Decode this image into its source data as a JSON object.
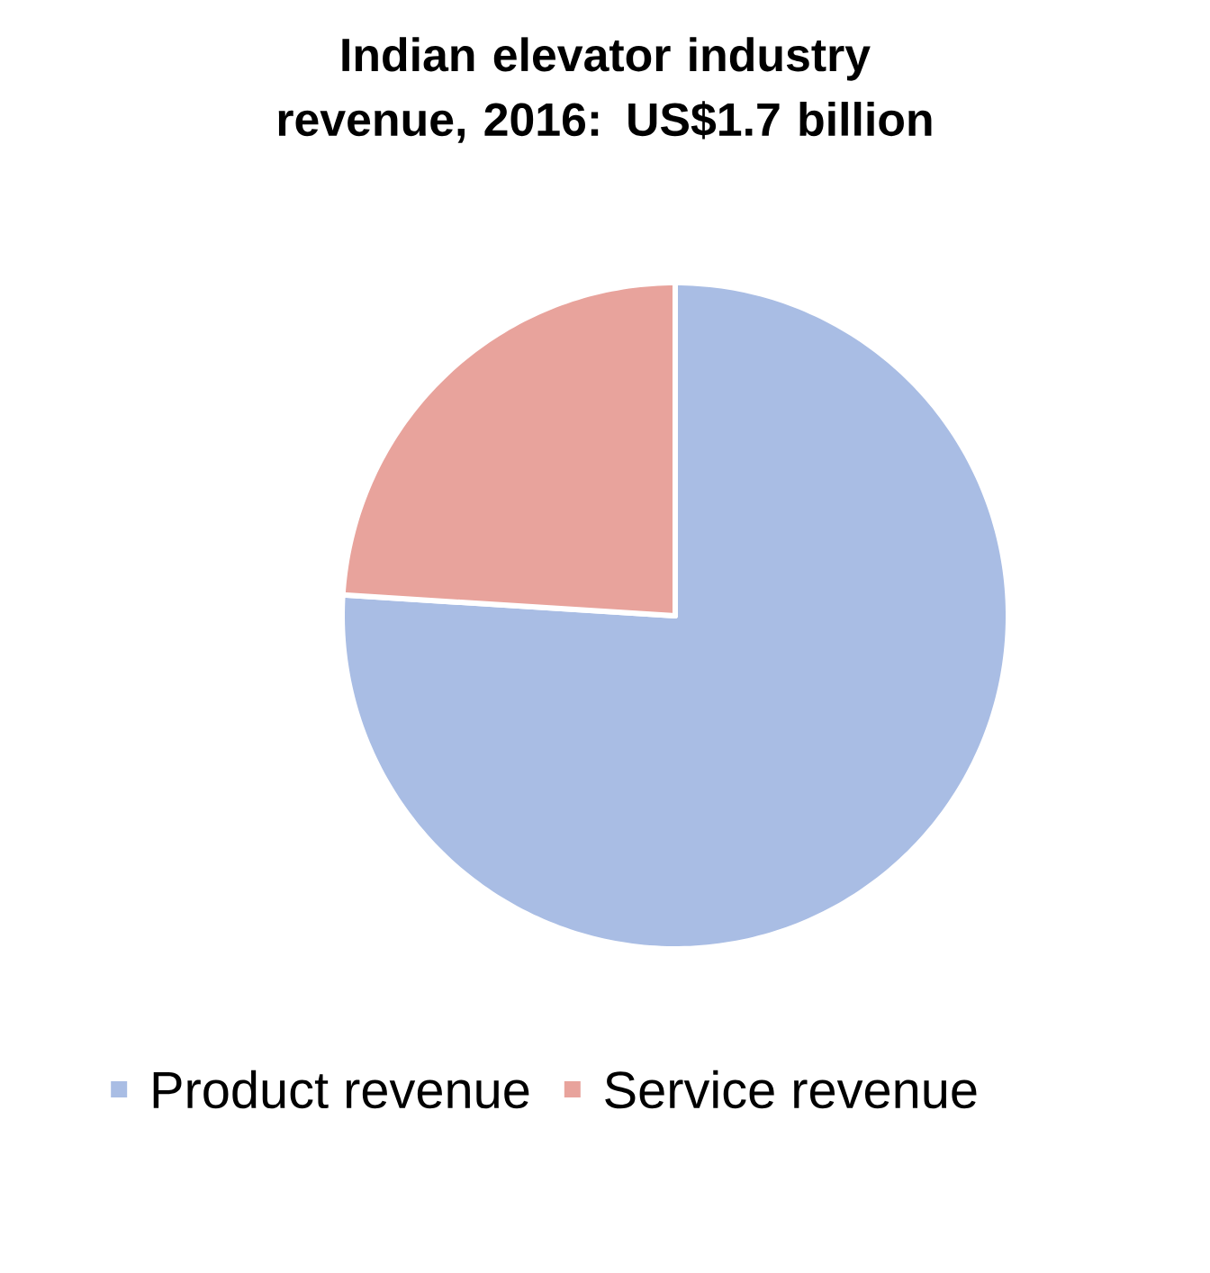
{
  "chart_data": {
    "type": "pie",
    "title": "Indian elevator industry revenue, 2016: US$1.7 billion",
    "categories": [
      "Product revenue",
      "Service revenue"
    ],
    "values": [
      76,
      24
    ],
    "colors": [
      "#a9bde4",
      "#e8a39c"
    ],
    "legend": "bottom"
  }
}
